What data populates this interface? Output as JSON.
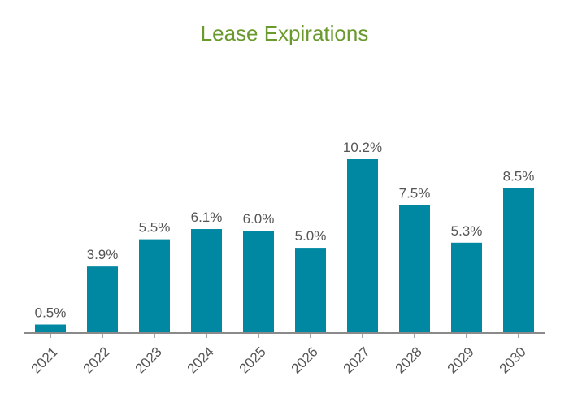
{
  "chart_data": {
    "type": "bar",
    "title": "Lease Expirations",
    "categories": [
      "2021",
      "2022",
      "2023",
      "2024",
      "2025",
      "2026",
      "2027",
      "2028",
      "2029",
      "2030"
    ],
    "values": [
      0.5,
      3.9,
      5.5,
      6.1,
      6.0,
      5.0,
      10.2,
      7.5,
      5.3,
      8.5
    ],
    "value_labels": [
      "0.5%",
      "3.9%",
      "5.5%",
      "6.1%",
      "6.0%",
      "5.0%",
      "10.2%",
      "7.5%",
      "5.3%",
      "8.5%"
    ],
    "xlabel": "",
    "ylabel": "",
    "ylim": [
      0,
      10.2
    ],
    "grid": false,
    "colors": {
      "bar": "#0088a3",
      "axis": "#8a8a8a",
      "title": "#6a9a2e",
      "label": "#555555"
    }
  }
}
